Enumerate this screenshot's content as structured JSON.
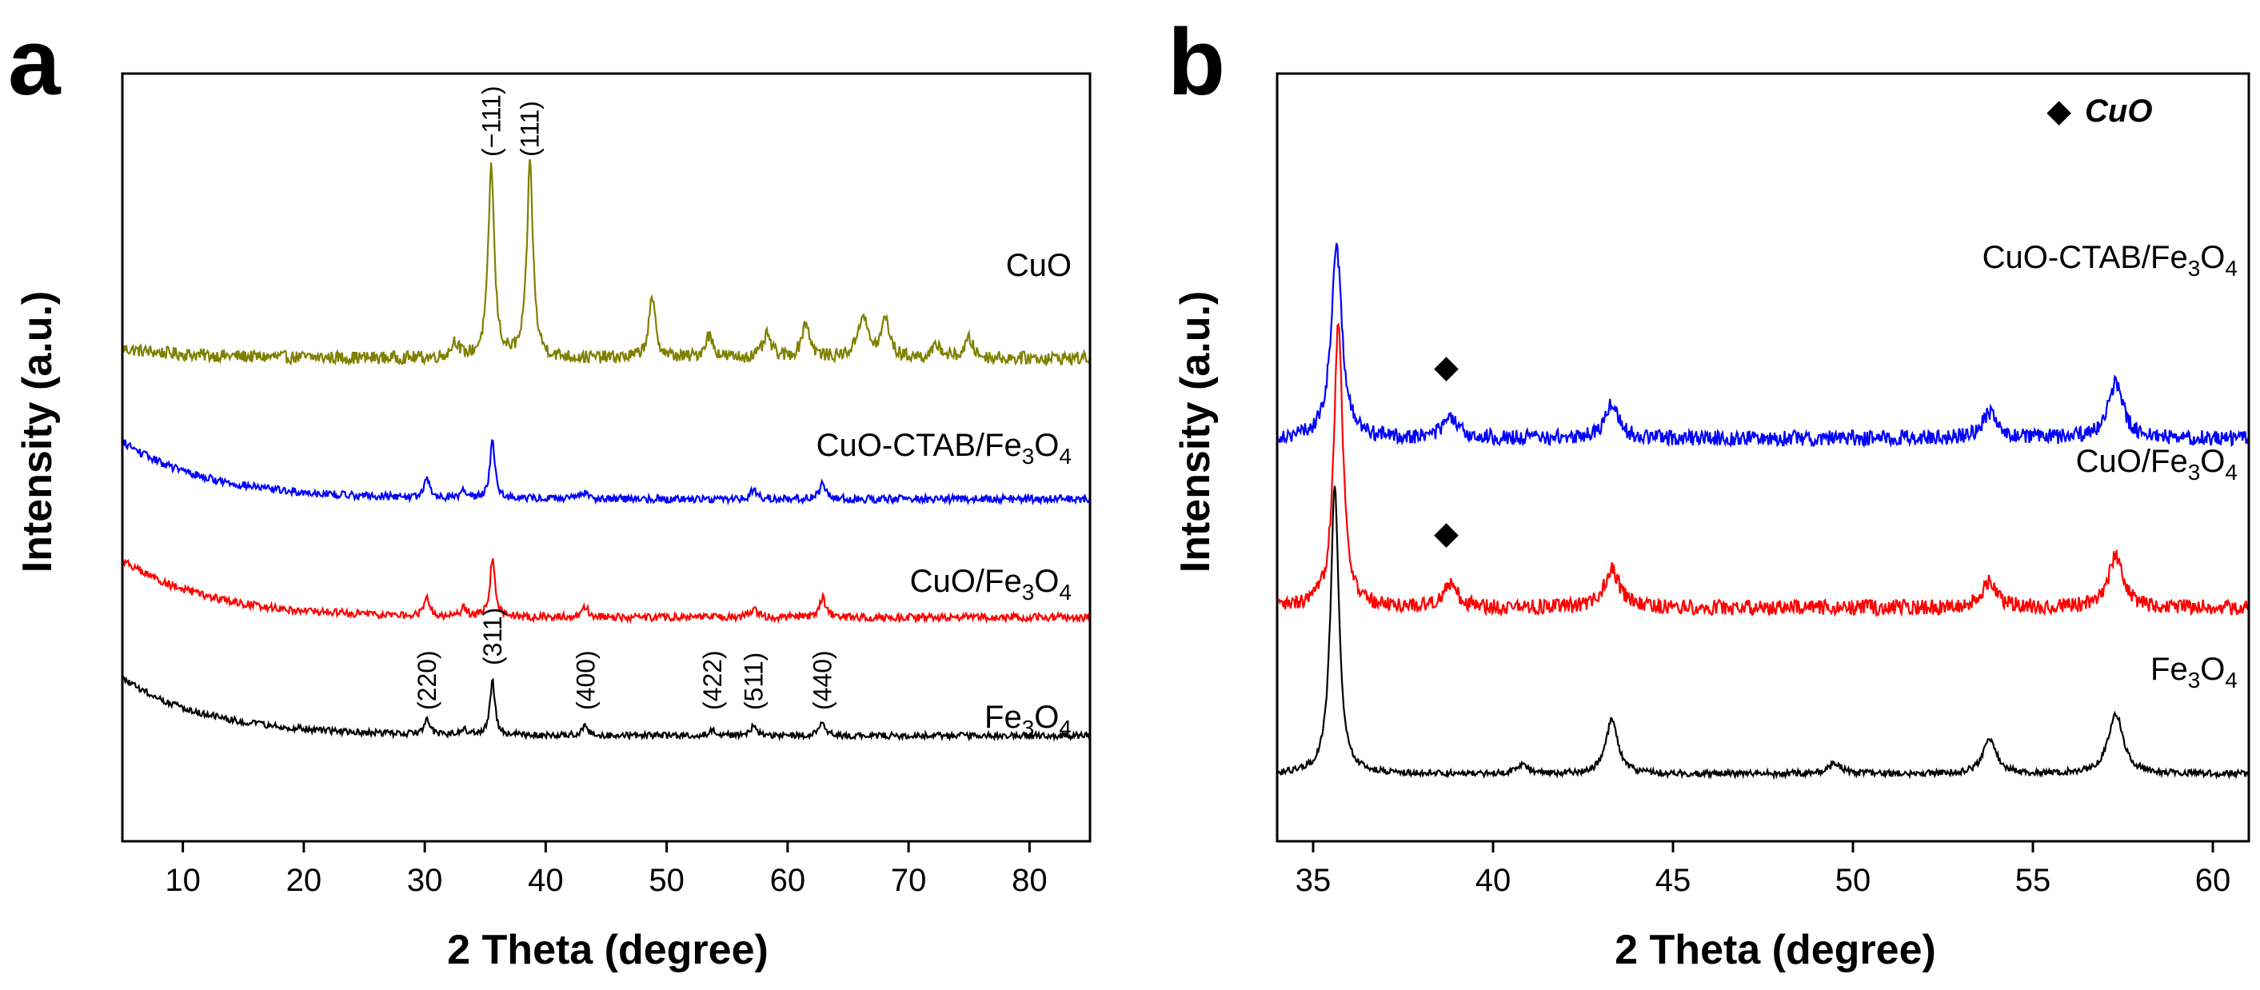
{
  "chart_data": [
    {
      "panel": "a",
      "type": "line",
      "title": "",
      "xlabel": "2 Theta (degree)",
      "ylabel": "Intensity (a.u.)",
      "xlim": [
        5,
        85
      ],
      "xticks": [
        10,
        20,
        30,
        40,
        50,
        60,
        70,
        80
      ],
      "yticks": false,
      "series": [
        {
          "key": "a_cuo",
          "label": "CuO",
          "sub": "",
          "suffix": "",
          "color": "#808000",
          "baseline": 7.55,
          "bgAmp": 0.15,
          "bgDecay": 6,
          "noise": 0.1,
          "peaks": [
            {
              "x": 32.5,
              "h": 0.25,
              "w": 0.35
            },
            {
              "x": 35.5,
              "h": 3.0,
              "w": 0.3
            },
            {
              "x": 38.7,
              "h": 3.05,
              "w": 0.3
            },
            {
              "x": 48.8,
              "h": 0.9,
              "w": 0.35
            },
            {
              "x": 53.5,
              "h": 0.35,
              "w": 0.4
            },
            {
              "x": 58.3,
              "h": 0.35,
              "w": 0.4
            },
            {
              "x": 61.5,
              "h": 0.55,
              "w": 0.4
            },
            {
              "x": 66.2,
              "h": 0.65,
              "w": 0.5
            },
            {
              "x": 68.1,
              "h": 0.6,
              "w": 0.4
            },
            {
              "x": 72.4,
              "h": 0.2,
              "w": 0.4
            },
            {
              "x": 75.0,
              "h": 0.3,
              "w": 0.4
            }
          ]
        },
        {
          "key": "a_ctab",
          "label": "CuO-CTAB/Fe",
          "sub": "3",
          "suffix": "O",
          "sub2": "4",
          "color": "#0000ff",
          "baseline": 5.35,
          "bgAmp": 0.9,
          "bgDecay": 7,
          "noise": 0.06,
          "peaks": [
            {
              "x": 30.2,
              "h": 0.3,
              "w": 0.25
            },
            {
              "x": 33.2,
              "h": 0.1,
              "w": 0.3
            },
            {
              "x": 35.6,
              "h": 0.9,
              "w": 0.25
            },
            {
              "x": 43.3,
              "h": 0.12,
              "w": 0.3
            },
            {
              "x": 57.2,
              "h": 0.15,
              "w": 0.3
            },
            {
              "x": 62.9,
              "h": 0.25,
              "w": 0.3
            }
          ]
        },
        {
          "key": "a_cuofe",
          "label": "CuO/Fe",
          "sub": "3",
          "suffix": "O",
          "sub2": "4",
          "color": "#ff0000",
          "baseline": 3.5,
          "bgAmp": 0.9,
          "bgDecay": 7,
          "noise": 0.06,
          "peaks": [
            {
              "x": 30.2,
              "h": 0.3,
              "w": 0.25
            },
            {
              "x": 33.2,
              "h": 0.12,
              "w": 0.3
            },
            {
              "x": 35.6,
              "h": 0.9,
              "w": 0.25
            },
            {
              "x": 43.3,
              "h": 0.15,
              "w": 0.3
            },
            {
              "x": 57.2,
              "h": 0.15,
              "w": 0.3
            },
            {
              "x": 62.9,
              "h": 0.3,
              "w": 0.3
            }
          ]
        },
        {
          "key": "a_fe",
          "label": "Fe",
          "sub": "3",
          "suffix": "O",
          "sub2": "4",
          "color": "#000000",
          "baseline": 1.65,
          "bgAmp": 0.9,
          "bgDecay": 7,
          "noise": 0.05,
          "peaks": [
            {
              "x": 30.2,
              "h": 0.25,
              "w": 0.25
            },
            {
              "x": 33.2,
              "h": 0.1,
              "w": 0.3
            },
            {
              "x": 35.6,
              "h": 0.85,
              "w": 0.25
            },
            {
              "x": 43.3,
              "h": 0.15,
              "w": 0.3
            },
            {
              "x": 53.8,
              "h": 0.1,
              "w": 0.3
            },
            {
              "x": 57.2,
              "h": 0.15,
              "w": 0.3
            },
            {
              "x": 62.9,
              "h": 0.2,
              "w": 0.3
            }
          ]
        }
      ],
      "annotations": [
        {
          "text": "(−111)",
          "x": 35.5,
          "y": 10.7
        },
        {
          "text": "(111)",
          "x": 38.7,
          "y": 10.7
        },
        {
          "text": "(220)",
          "x": 30.2,
          "y": 2.05
        },
        {
          "text": "(311)",
          "x": 35.6,
          "y": 2.75
        },
        {
          "text": "(400)",
          "x": 43.3,
          "y": 2.05
        },
        {
          "text": "(422)",
          "x": 53.8,
          "y": 2.05
        },
        {
          "text": "(511)",
          "x": 57.2,
          "y": 2.05
        },
        {
          "text": "(440)",
          "x": 62.9,
          "y": 2.05
        }
      ]
    },
    {
      "panel": "b",
      "type": "line",
      "title": "",
      "xlabel": "2 Theta (degree)",
      "ylabel": "Intensity (a.u.)",
      "xlim": [
        34,
        61
      ],
      "xticks": [
        35,
        40,
        45,
        50,
        55,
        60
      ],
      "yticks": false,
      "legend": {
        "marker": "◆",
        "text": "CuO",
        "position": "top-right"
      },
      "series": [
        {
          "key": "b_ctab",
          "label": "CuO-CTAB/Fe",
          "sub": "3",
          "suffix": "O",
          "sub2": "4",
          "color": "#0000ff",
          "baseline": 6.3,
          "noise": 0.12,
          "peaks": [
            {
              "x": 35.65,
              "h": 3.0,
              "w": 0.18
            },
            {
              "x": 38.8,
              "h": 0.3,
              "w": 0.25
            },
            {
              "x": 43.3,
              "h": 0.55,
              "w": 0.22
            },
            {
              "x": 53.8,
              "h": 0.4,
              "w": 0.25
            },
            {
              "x": 57.3,
              "h": 0.85,
              "w": 0.25
            }
          ]
        },
        {
          "key": "b_cuofe",
          "label": "CuO/Fe",
          "sub": "3",
          "suffix": "O",
          "sub2": "4",
          "color": "#ff0000",
          "baseline": 3.65,
          "noise": 0.12,
          "peaks": [
            {
              "x": 35.7,
              "h": 4.5,
              "w": 0.15
            },
            {
              "x": 38.8,
              "h": 0.35,
              "w": 0.25
            },
            {
              "x": 43.3,
              "h": 0.6,
              "w": 0.25
            },
            {
              "x": 53.8,
              "h": 0.4,
              "w": 0.25
            },
            {
              "x": 57.3,
              "h": 0.8,
              "w": 0.25
            }
          ]
        },
        {
          "key": "b_fe",
          "label": "Fe",
          "sub": "3",
          "suffix": "O",
          "sub2": "4",
          "color": "#000000",
          "baseline": 1.05,
          "noise": 0.05,
          "peaks": [
            {
              "x": 35.6,
              "h": 4.5,
              "w": 0.14
            },
            {
              "x": 40.8,
              "h": 0.15,
              "w": 0.2
            },
            {
              "x": 43.3,
              "h": 0.85,
              "w": 0.2
            },
            {
              "x": 49.5,
              "h": 0.15,
              "w": 0.25
            },
            {
              "x": 53.8,
              "h": 0.55,
              "w": 0.22
            },
            {
              "x": 57.3,
              "h": 0.95,
              "w": 0.25
            }
          ]
        }
      ],
      "markers": [
        {
          "symbol": "◆",
          "x": 38.7,
          "y": 7.25
        },
        {
          "symbol": "◆",
          "x": 38.7,
          "y": 4.65
        }
      ]
    }
  ]
}
